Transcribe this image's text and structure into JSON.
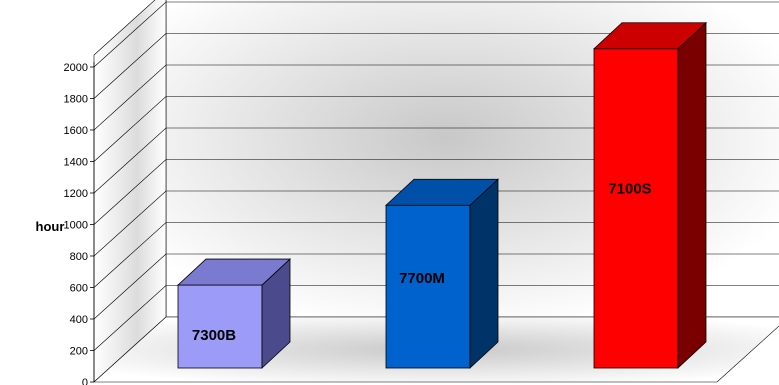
{
  "chart_data": {
    "type": "bar",
    "categories": [
      "7300B",
      "7700M",
      "7100S"
    ],
    "values": [
      530,
      1040,
      2040
    ],
    "title": "",
    "xlabel": "",
    "ylabel": "hour",
    "ylim": [
      0,
      2000
    ],
    "yticks": [
      "0",
      "200",
      "400",
      "600",
      "800",
      "1000",
      "1200",
      "1400",
      "1600",
      "1800",
      "2000"
    ],
    "three_d": true,
    "grid": true,
    "legend": "none",
    "bar_colors": [
      {
        "front": "#9c9cf8",
        "side": "#4a4a8c",
        "top": "#7a7ad0"
      },
      {
        "front": "#0062cc",
        "side": "#003468",
        "top": "#0050aa"
      },
      {
        "front": "#ff0000",
        "side": "#7a0000",
        "top": "#cc0000"
      }
    ]
  }
}
